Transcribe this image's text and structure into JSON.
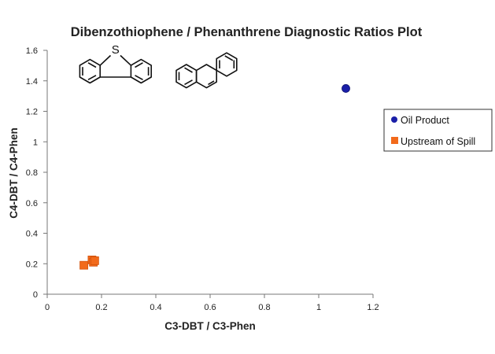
{
  "chart_data": {
    "type": "scatter",
    "title": "Dibenzothiophene / Phenanthrene Diagnostic Ratios Plot",
    "xlabel": "C3-DBT / C3-Phen",
    "ylabel": "C4-DBT / C4-Phen",
    "xlim": [
      0,
      1.2
    ],
    "ylim": [
      0,
      1.6
    ],
    "x_ticks": [
      "0",
      "0.2",
      "0.4",
      "0.6",
      "0.8",
      "1",
      "1.2"
    ],
    "y_ticks": [
      "0",
      "0.2",
      "0.4",
      "0.6",
      "0.8",
      "1",
      "1.2",
      "1.4",
      "1.6"
    ],
    "grid": false,
    "legend_position": "right",
    "series": [
      {
        "name": "Oil Product",
        "marker": "circle",
        "color": "#1a1fa8",
        "points": [
          {
            "x": 1.1,
            "y": 1.35
          }
        ]
      },
      {
        "name": "Upstream of Spill",
        "marker": "square",
        "color": "#f26a1b",
        "points": [
          {
            "x": 0.135,
            "y": 0.19
          },
          {
            "x": 0.165,
            "y": 0.225
          },
          {
            "x": 0.17,
            "y": 0.21
          },
          {
            "x": 0.175,
            "y": 0.22
          }
        ]
      }
    ]
  },
  "structures": {
    "left_atom_label": "S"
  }
}
